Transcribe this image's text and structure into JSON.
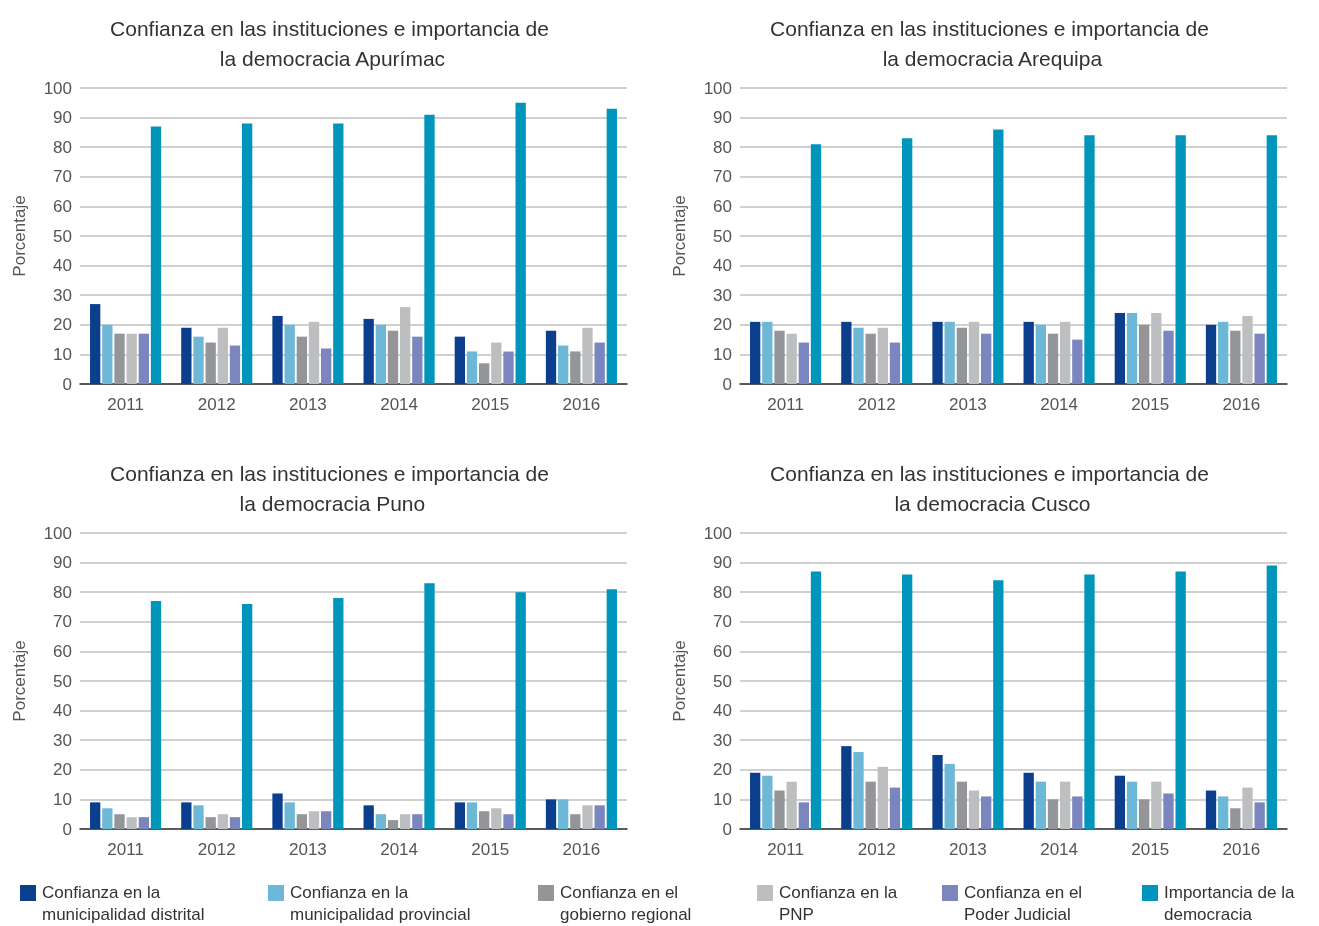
{
  "chart_data": [
    {
      "type": "bar",
      "title": "Confianza en las instituciones e importancia de la democracia Apurímac",
      "ylabel": "Porcentaje",
      "categories": [
        "2011",
        "2012",
        "2013",
        "2014",
        "2015",
        "2016"
      ],
      "ylim": [
        0,
        100
      ],
      "yticks": [
        0,
        10,
        20,
        30,
        40,
        50,
        60,
        70,
        80,
        90,
        100
      ],
      "grid": "y",
      "legend": "bottom",
      "series": [
        {
          "name": "Confianza en la municipalidad distrital",
          "color": "#0b3f8e",
          "values": [
            27,
            19,
            23,
            22,
            16,
            18
          ]
        },
        {
          "name": "Confianza en la municipalidad provincial",
          "color": "#6db8d6",
          "values": [
            20,
            16,
            20,
            20,
            11,
            13
          ]
        },
        {
          "name": "Confianza en el gobierno regional",
          "color": "#939598",
          "values": [
            17,
            14,
            16,
            18,
            7,
            11
          ]
        },
        {
          "name": "Confianza en la PNP",
          "color": "#bcbec0",
          "values": [
            17,
            19,
            21,
            26,
            14,
            19
          ]
        },
        {
          "name": "Confianza en el Poder Judicial",
          "color": "#7a86bd",
          "values": [
            17,
            13,
            12,
            16,
            11,
            14
          ]
        },
        {
          "name": "Importancia de la democracia",
          "color": "#0095bb",
          "values": [
            87,
            88,
            88,
            91,
            95,
            93
          ]
        }
      ]
    },
    {
      "type": "bar",
      "title": "Confianza en las instituciones e importancia de la democracia Arequipa",
      "ylabel": "Porcentaje",
      "categories": [
        "2011",
        "2012",
        "2013",
        "2014",
        "2015",
        "2016"
      ],
      "ylim": [
        0,
        100
      ],
      "yticks": [
        0,
        10,
        20,
        30,
        40,
        50,
        60,
        70,
        80,
        90,
        100
      ],
      "grid": "y",
      "legend": "bottom",
      "series": [
        {
          "name": "Confianza en la municipalidad distrital",
          "color": "#0b3f8e",
          "values": [
            21,
            21,
            21,
            21,
            24,
            20
          ]
        },
        {
          "name": "Confianza en la municipalidad provincial",
          "color": "#6db8d6",
          "values": [
            21,
            19,
            21,
            20,
            24,
            21
          ]
        },
        {
          "name": "Confianza en el gobierno regional",
          "color": "#939598",
          "values": [
            18,
            17,
            19,
            17,
            20,
            18
          ]
        },
        {
          "name": "Confianza en la PNP",
          "color": "#bcbec0",
          "values": [
            17,
            19,
            21,
            21,
            24,
            23
          ]
        },
        {
          "name": "Confianza en el Poder Judicial",
          "color": "#7a86bd",
          "values": [
            14,
            14,
            17,
            15,
            18,
            17
          ]
        },
        {
          "name": "Importancia de la democracia",
          "color": "#0095bb",
          "values": [
            81,
            83,
            86,
            84,
            84,
            84
          ]
        }
      ]
    },
    {
      "type": "bar",
      "title": "Confianza en las instituciones e importancia de la democracia Puno",
      "ylabel": "Porcentaje",
      "categories": [
        "2011",
        "2012",
        "2013",
        "2014",
        "2015",
        "2016"
      ],
      "ylim": [
        0,
        100
      ],
      "yticks": [
        0,
        10,
        20,
        30,
        40,
        50,
        60,
        70,
        80,
        90,
        100
      ],
      "grid": "y",
      "legend": "bottom",
      "series": [
        {
          "name": "Confianza en la municipalidad distrital",
          "color": "#0b3f8e",
          "values": [
            9,
            9,
            12,
            8,
            9,
            10
          ]
        },
        {
          "name": "Confianza en la municipalidad provincial",
          "color": "#6db8d6",
          "values": [
            7,
            8,
            9,
            5,
            9,
            10
          ]
        },
        {
          "name": "Confianza en el gobierno regional",
          "color": "#939598",
          "values": [
            5,
            4,
            5,
            3,
            6,
            5
          ]
        },
        {
          "name": "Confianza en la PNP",
          "color": "#bcbec0",
          "values": [
            4,
            5,
            6,
            5,
            7,
            8
          ]
        },
        {
          "name": "Confianza en el Poder Judicial",
          "color": "#7a86bd",
          "values": [
            4,
            4,
            6,
            5,
            5,
            8
          ]
        },
        {
          "name": "Importancia de la democracia",
          "color": "#0095bb",
          "values": [
            77,
            76,
            78,
            83,
            80,
            81
          ]
        }
      ]
    },
    {
      "type": "bar",
      "title": "Confianza en las instituciones e importancia de la democracia Cusco",
      "ylabel": "Porcentaje",
      "categories": [
        "2011",
        "2012",
        "2013",
        "2014",
        "2015",
        "2016"
      ],
      "ylim": [
        0,
        100
      ],
      "yticks": [
        0,
        10,
        20,
        30,
        40,
        50,
        60,
        70,
        80,
        90,
        100
      ],
      "grid": "y",
      "legend": "bottom",
      "series": [
        {
          "name": "Confianza en la municipalidad distrital",
          "color": "#0b3f8e",
          "values": [
            19,
            28,
            25,
            19,
            18,
            13
          ]
        },
        {
          "name": "Confianza en la municipalidad provincial",
          "color": "#6db8d6",
          "values": [
            18,
            26,
            22,
            16,
            16,
            11
          ]
        },
        {
          "name": "Confianza en el gobierno regional",
          "color": "#939598",
          "values": [
            13,
            16,
            16,
            10,
            10,
            7
          ]
        },
        {
          "name": "Confianza en la PNP",
          "color": "#bcbec0",
          "values": [
            16,
            21,
            13,
            16,
            16,
            14
          ]
        },
        {
          "name": "Confianza en el Poder Judicial",
          "color": "#7a86bd",
          "values": [
            9,
            14,
            11,
            11,
            12,
            9
          ]
        },
        {
          "name": "Importancia de la democracia",
          "color": "#0095bb",
          "values": [
            87,
            86,
            84,
            86,
            87,
            89
          ]
        }
      ]
    }
  ]
}
